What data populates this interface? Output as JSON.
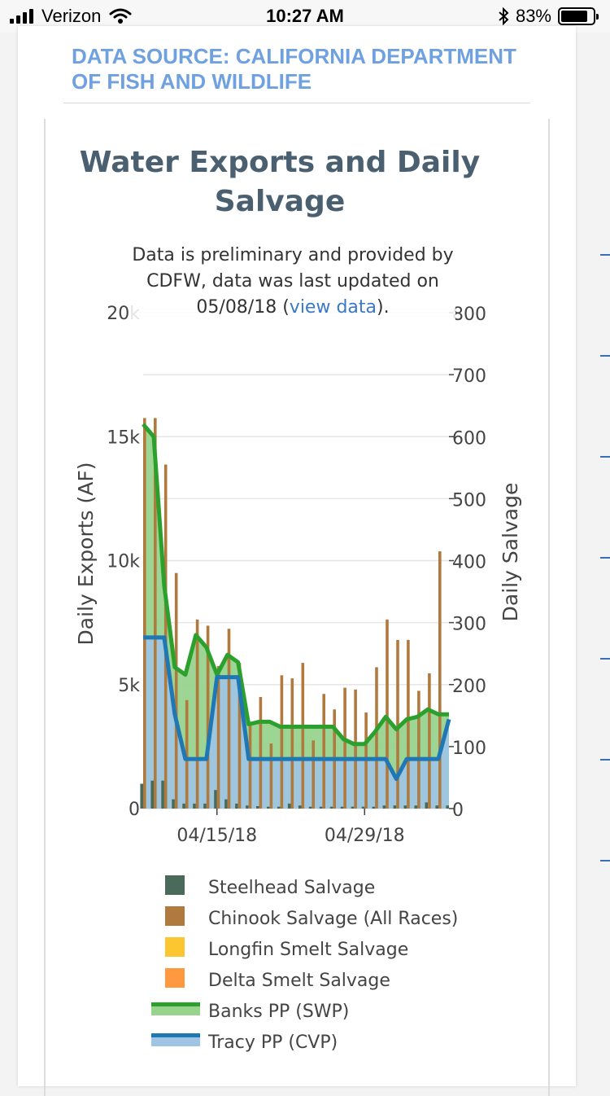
{
  "status_bar": {
    "carrier": "Verizon",
    "time": "10:27 AM",
    "battery": "83%",
    "battery_level": 0.83
  },
  "source_header": "DATA SOURCE: CALIFORNIA DEPARTMENT OF FISH AND WILDLIFE",
  "chart_data": {
    "type": "bar",
    "title": "Water Exports and Daily Salvage",
    "subtitle": {
      "before": "Data is preliminary and provided by CDFW, data was last updated on 05/08/18 (",
      "link": "view data",
      "after": ")."
    },
    "ylabel": "Daily Exports (AF)",
    "y2label": "Daily Salvage",
    "ylim": [
      0,
      20000
    ],
    "y2lim": [
      0,
      800
    ],
    "y_ticks": [
      {
        "value": 0,
        "label": "0"
      },
      {
        "value": 5000,
        "label": "5k"
      },
      {
        "value": 10000,
        "label": "10k"
      },
      {
        "value": 15000,
        "label": "15k"
      },
      {
        "value": 20000,
        "label": "20k"
      }
    ],
    "y2_ticks": [
      {
        "value": 0,
        "label": "0"
      },
      {
        "value": 100,
        "label": "100"
      },
      {
        "value": 200,
        "label": "200"
      },
      {
        "value": 300,
        "label": "300"
      },
      {
        "value": 400,
        "label": "400"
      },
      {
        "value": 500,
        "label": "500"
      },
      {
        "value": 600,
        "label": "600"
      },
      {
        "value": 700,
        "label": "700"
      },
      {
        "value": 800,
        "label": "800"
      }
    ],
    "x_ticks": [
      {
        "date": "2018-04-15",
        "label": "04/15/18"
      },
      {
        "date": "2018-04-29",
        "label": "04/29/18"
      }
    ],
    "dates": [
      "2018-04-08",
      "2018-04-09",
      "2018-04-10",
      "2018-04-11",
      "2018-04-12",
      "2018-04-13",
      "2018-04-14",
      "2018-04-15",
      "2018-04-16",
      "2018-04-17",
      "2018-04-18",
      "2018-04-19",
      "2018-04-20",
      "2018-04-21",
      "2018-04-22",
      "2018-04-23",
      "2018-04-24",
      "2018-04-25",
      "2018-04-26",
      "2018-04-27",
      "2018-04-28",
      "2018-04-29",
      "2018-04-30",
      "2018-05-01",
      "2018-05-02",
      "2018-05-03",
      "2018-05-04",
      "2018-05-05",
      "2018-05-06",
      "2018-05-07"
    ],
    "grid": true,
    "legend_position": "bottom",
    "series": [
      {
        "name": "Banks PP (SWP)",
        "kind": "area",
        "axis": "y",
        "color": "#2ca02c",
        "fill": "#98d38e",
        "values": [
          15500,
          15000,
          9000,
          5700,
          5400,
          7000,
          6500,
          5400,
          6200,
          5900,
          3400,
          3500,
          3500,
          3300,
          3300,
          3300,
          3300,
          3300,
          3300,
          2800,
          2600,
          2600,
          3100,
          3700,
          3200,
          3600,
          3700,
          4000,
          3800,
          3800
        ]
      },
      {
        "name": "Tracy PP (CVP)",
        "kind": "area",
        "axis": "y",
        "color": "#1f77b4",
        "fill": "#9ec5e3",
        "values": [
          6900,
          6900,
          6900,
          3800,
          2000,
          2000,
          2000,
          5300,
          5300,
          5300,
          2000,
          2000,
          2000,
          2000,
          2000,
          2000,
          2000,
          2000,
          2000,
          2000,
          2000,
          2000,
          2000,
          2000,
          1200,
          2000,
          2000,
          2000,
          2000,
          3600
        ]
      },
      {
        "name": "Steelhead Salvage",
        "kind": "bar",
        "axis": "y2",
        "color": "#4a6b5a",
        "values": [
          40,
          45,
          45,
          15,
          8,
          8,
          8,
          30,
          15,
          8,
          5,
          4,
          3,
          3,
          8,
          5,
          3,
          3,
          3,
          3,
          3,
          3,
          3,
          5,
          5,
          5,
          5,
          10,
          5,
          5
        ]
      },
      {
        "name": "Chinook Salvage (All Races)",
        "kind": "bar",
        "axis": "y2",
        "color": "#b07a3e",
        "values": [
          630,
          630,
          555,
          380,
          175,
          305,
          295,
          230,
          290,
          235,
          140,
          180,
          105,
          215,
          210,
          235,
          110,
          185,
          160,
          195,
          192,
          155,
          228,
          305,
          272,
          272,
          190,
          218,
          415,
          0
        ]
      },
      {
        "name": "Longfin Smelt Salvage",
        "kind": "bar",
        "axis": "y2",
        "color": "#fcc630",
        "values": [
          0,
          0,
          0,
          0,
          0,
          0,
          0,
          0,
          0,
          0,
          0,
          0,
          0,
          0,
          0,
          0,
          0,
          0,
          0,
          0,
          0,
          0,
          0,
          0,
          0,
          0,
          0,
          0,
          0,
          0
        ]
      },
      {
        "name": "Delta Smelt Salvage",
        "kind": "bar",
        "axis": "y2",
        "color": "#ff9940",
        "values": [
          0,
          0,
          0,
          0,
          0,
          0,
          0,
          0,
          0,
          0,
          0,
          0,
          0,
          0,
          0,
          0,
          0,
          0,
          0,
          0,
          0,
          0,
          0,
          0,
          0,
          0,
          0,
          0,
          0,
          0
        ]
      }
    ],
    "legend": [
      {
        "name": "Steelhead Salvage",
        "marker": "square",
        "color": "#4a6b5a"
      },
      {
        "name": "Chinook Salvage (All Races)",
        "marker": "square",
        "color": "#b07a3e"
      },
      {
        "name": "Longfin Smelt Salvage",
        "marker": "square",
        "color": "#fcc630"
      },
      {
        "name": "Delta Smelt Salvage",
        "marker": "square",
        "color": "#ff9940"
      },
      {
        "name": "Banks PP (SWP)",
        "marker": "line",
        "color": "#2ca02c",
        "fill": "#98d38e"
      },
      {
        "name": "Tracy PP (CVP)",
        "marker": "line",
        "color": "#1f77b4",
        "fill": "#9ec5e3"
      }
    ]
  }
}
